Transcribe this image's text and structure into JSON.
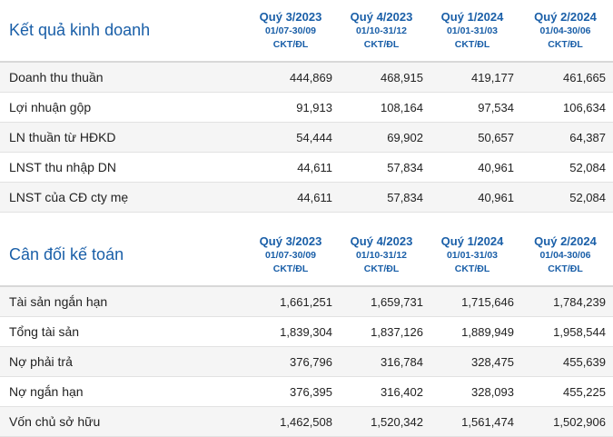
{
  "sections": [
    {
      "title": "Kết quả kinh doanh",
      "columns": [
        {
          "quarter": "Quý 3/2023",
          "range": "01/07-30/09",
          "unit": "CKT/ĐL"
        },
        {
          "quarter": "Quý 4/2023",
          "range": "01/10-31/12",
          "unit": "CKT/ĐL"
        },
        {
          "quarter": "Quý 1/2024",
          "range": "01/01-31/03",
          "unit": "CKT/ĐL"
        },
        {
          "quarter": "Quý 2/2024",
          "range": "01/04-30/06",
          "unit": "CKT/ĐL"
        }
      ],
      "rows": [
        {
          "label": "Doanh thu thuần",
          "values": [
            "444,869",
            "468,915",
            "419,177",
            "461,665"
          ]
        },
        {
          "label": "Lợi nhuận gộp",
          "values": [
            "91,913",
            "108,164",
            "97,534",
            "106,634"
          ]
        },
        {
          "label": "LN thuần từ HĐKD",
          "values": [
            "54,444",
            "69,902",
            "50,657",
            "64,387"
          ]
        },
        {
          "label": "LNST thu nhập DN",
          "values": [
            "44,611",
            "57,834",
            "40,961",
            "52,084"
          ]
        },
        {
          "label": "LNST của CĐ cty mẹ",
          "values": [
            "44,611",
            "57,834",
            "40,961",
            "52,084"
          ]
        }
      ]
    },
    {
      "title": "Cân đối kế toán",
      "columns": [
        {
          "quarter": "Quý 3/2023",
          "range": "01/07-30/09",
          "unit": "CKT/ĐL"
        },
        {
          "quarter": "Quý 4/2023",
          "range": "01/10-31/12",
          "unit": "CKT/ĐL"
        },
        {
          "quarter": "Quý 1/2024",
          "range": "01/01-31/03",
          "unit": "CKT/ĐL"
        },
        {
          "quarter": "Quý 2/2024",
          "range": "01/04-30/06",
          "unit": "CKT/ĐL"
        }
      ],
      "rows": [
        {
          "label": "Tài sản ngắn hạn",
          "values": [
            "1,661,251",
            "1,659,731",
            "1,715,646",
            "1,784,239"
          ]
        },
        {
          "label": "Tổng tài sản",
          "values": [
            "1,839,304",
            "1,837,126",
            "1,889,949",
            "1,958,544"
          ]
        },
        {
          "label": "Nợ phải trả",
          "values": [
            "376,796",
            "316,784",
            "328,475",
            "455,639"
          ]
        },
        {
          "label": "Nợ ngắn hạn",
          "values": [
            "376,395",
            "316,402",
            "328,093",
            "455,225"
          ]
        },
        {
          "label": "Vốn chủ sở hữu",
          "values": [
            "1,462,508",
            "1,520,342",
            "1,561,474",
            "1,502,906"
          ]
        }
      ]
    }
  ]
}
